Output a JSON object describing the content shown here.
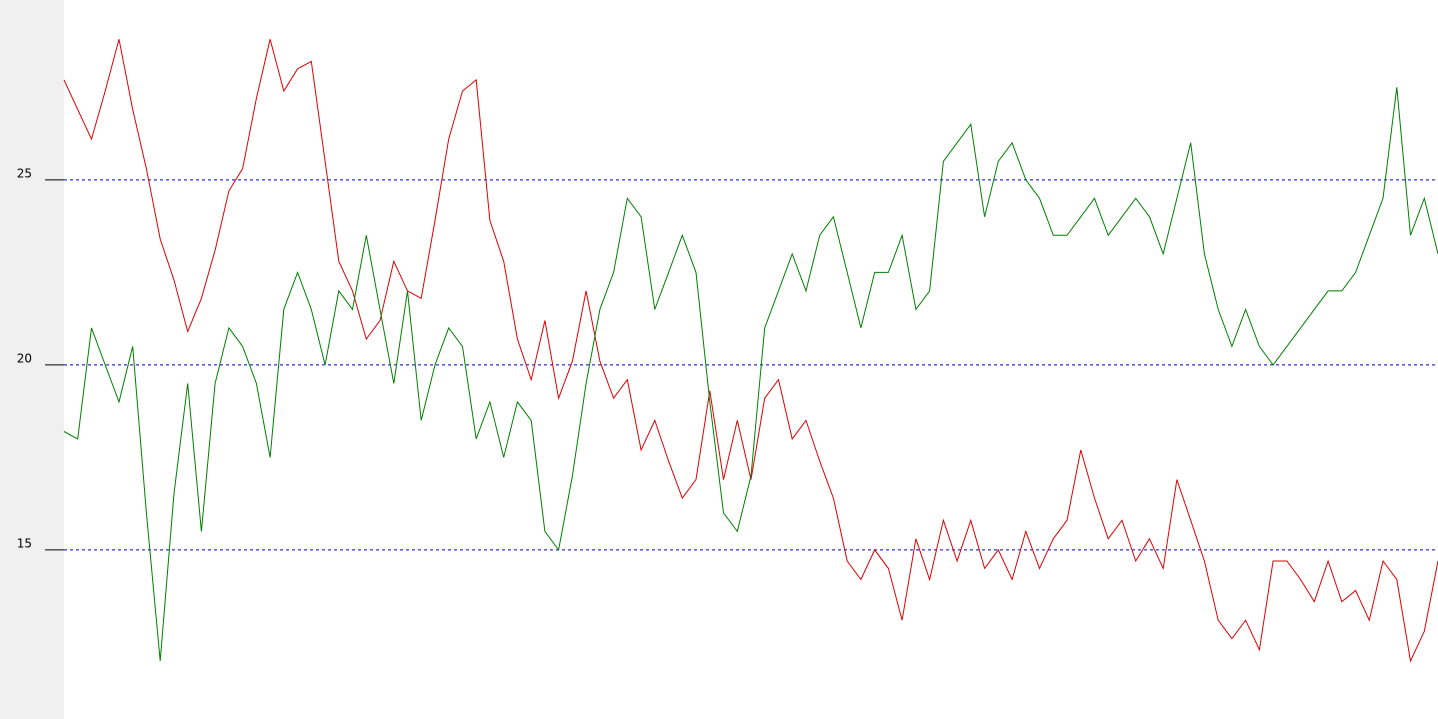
{
  "chart_data": {
    "type": "line",
    "ylim": [
      10.43,
      29.86
    ],
    "yticks": [
      15,
      20,
      25
    ],
    "grid": true,
    "series": [
      {
        "color": "#e00000",
        "values": [
          27.7,
          26.9,
          26.1,
          27.4,
          28.8,
          26.9,
          25.3,
          23.4,
          22.3,
          20.9,
          21.8,
          23.1,
          24.7,
          25.3,
          27.2,
          28.8,
          27.4,
          28.0,
          28.2,
          25.5,
          22.8,
          22.0,
          20.7,
          21.2,
          22.8,
          22.0,
          21.8,
          23.9,
          26.1,
          27.4,
          27.7,
          23.9,
          22.8,
          20.7,
          19.6,
          21.2,
          19.1,
          20.1,
          22.0,
          20.1,
          19.1,
          19.6,
          17.7,
          18.5,
          17.4,
          16.4,
          16.9,
          19.3,
          16.9,
          18.5,
          16.9,
          19.1,
          19.6,
          18.0,
          18.5,
          17.4,
          16.4,
          14.7,
          14.2,
          15.0,
          14.5,
          13.1,
          15.3,
          14.2,
          15.8,
          14.7,
          15.8,
          14.5,
          15.0,
          14.2,
          15.5,
          14.5,
          15.3,
          15.8,
          17.7,
          16.4,
          15.3,
          15.8,
          14.7,
          15.3,
          14.5,
          16.9,
          15.8,
          14.7,
          13.1,
          12.6,
          13.1,
          12.3,
          14.7,
          14.7,
          14.2,
          13.6,
          14.7,
          13.6,
          13.9,
          13.1,
          14.7,
          14.2,
          12.0,
          12.8,
          14.7
        ]
      },
      {
        "color": "#008000",
        "values": [
          18.2,
          18.0,
          21.0,
          20.0,
          19.0,
          20.5,
          16.0,
          12.0,
          16.5,
          19.5,
          15.5,
          19.5,
          21.0,
          20.5,
          19.5,
          17.5,
          21.5,
          22.5,
          21.5,
          20.0,
          22.0,
          21.5,
          23.5,
          21.5,
          19.5,
          22.0,
          18.5,
          20.0,
          21.0,
          20.5,
          18.0,
          19.0,
          17.5,
          19.0,
          18.5,
          15.5,
          15.0,
          17.0,
          19.5,
          21.5,
          22.5,
          24.5,
          24.0,
          21.5,
          22.5,
          23.5,
          22.5,
          19.0,
          16.0,
          15.5,
          17.0,
          21.0,
          22.0,
          23.0,
          22.0,
          23.5,
          24.0,
          22.5,
          21.0,
          22.5,
          22.5,
          23.5,
          21.5,
          22.0,
          25.5,
          26.0,
          26.5,
          24.0,
          25.5,
          26.0,
          25.0,
          24.5,
          23.5,
          23.5,
          24.0,
          24.5,
          23.5,
          24.0,
          24.5,
          24.0,
          23.0,
          24.5,
          26.0,
          23.0,
          21.5,
          20.5,
          21.5,
          20.5,
          20.0,
          20.5,
          21.0,
          21.5,
          22.0,
          22.0,
          22.5,
          23.5,
          24.5,
          27.5,
          23.5,
          24.5,
          23.0
        ]
      }
    ]
  }
}
